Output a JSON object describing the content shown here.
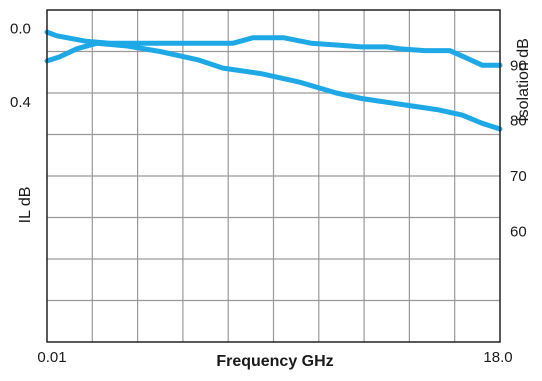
{
  "chart_data": {
    "type": "line",
    "xlabel": "Frequency GHz",
    "ylabel_left": "IL dB",
    "ylabel_right": "Isolation dB",
    "x_tick_labels": [
      "0.01",
      "18.0"
    ],
    "xlim": [
      0.01,
      18.0
    ],
    "y_left": {
      "ticks": [
        0.0,
        0.4
      ],
      "tick_labels": [
        "0.0",
        "0.4"
      ],
      "range": [
        -0.1,
        1.7
      ],
      "inverted": true
    },
    "y_right": {
      "ticks": [
        60,
        70,
        80,
        90
      ],
      "tick_labels": [
        "60",
        "70",
        "80",
        "90"
      ],
      "range": [
        40,
        100
      ],
      "inverted": false
    },
    "grid": true,
    "colors": {
      "series": "#1ea9e6",
      "grid": "#9a9a9a",
      "frame": "#222222"
    },
    "series": [
      {
        "axis": "left",
        "x": [
          0.01,
          0.4,
          0.8,
          1.6,
          2.5,
          3.2,
          4.0,
          5.2,
          6.5,
          7.4,
          8.2,
          9.4,
          10.5,
          11.5,
          12.5,
          13.5,
          14.0,
          15.0,
          16.0,
          16.5,
          17.3,
          18.0
        ],
        "y": [
          0.02,
          0.04,
          0.05,
          0.07,
          0.08,
          0.08,
          0.08,
          0.08,
          0.08,
          0.08,
          0.05,
          0.05,
          0.08,
          0.09,
          0.1,
          0.1,
          0.11,
          0.12,
          0.12,
          0.15,
          0.2,
          0.2
        ]
      },
      {
        "axis": "right",
        "x": [
          0.01,
          0.5,
          1.2,
          2.0,
          3.2,
          4.5,
          6.0,
          7.0,
          8.5,
          10.0,
          11.5,
          12.5,
          14.0,
          15.5,
          16.5,
          17.3,
          18.0
        ],
        "y": [
          90.8,
          91.5,
          93.0,
          94.0,
          93.5,
          92.5,
          91.0,
          89.5,
          88.5,
          87.0,
          85.0,
          84.0,
          83.0,
          82.0,
          81.0,
          79.5,
          78.5
        ]
      }
    ]
  }
}
